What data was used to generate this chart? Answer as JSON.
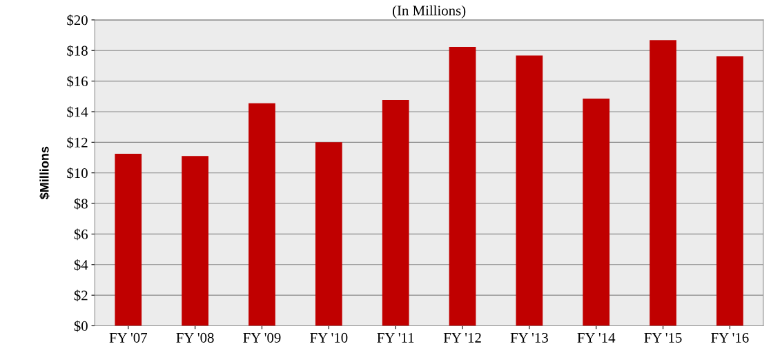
{
  "chart_data": {
    "type": "bar",
    "title": "(In Millions)",
    "ylabel": "$Millions",
    "categories": [
      "FY '07",
      "FY '08",
      "FY '09",
      "FY '10",
      "FY '11",
      "FY '12",
      "FY '13",
      "FY '14",
      "FY '15",
      "FY '16"
    ],
    "values": [
      11.25,
      11.1,
      14.55,
      12.0,
      14.77,
      18.24,
      17.67,
      14.86,
      18.68,
      17.63
    ],
    "color": "#c00000",
    "ylim": [
      0,
      20
    ],
    "yticks": [
      {
        "value": 0,
        "label": "$0"
      },
      {
        "value": 2,
        "label": "$2"
      },
      {
        "value": 4,
        "label": "$4"
      },
      {
        "value": 6,
        "label": "$6"
      },
      {
        "value": 8,
        "label": "$8"
      },
      {
        "value": 10,
        "label": "$10"
      },
      {
        "value": 12,
        "label": "$12"
      },
      {
        "value": 14,
        "label": "$14"
      },
      {
        "value": 16,
        "label": "$16"
      },
      {
        "value": 18,
        "label": "$18"
      },
      {
        "value": 20,
        "label": "$20"
      }
    ],
    "grid": "y",
    "legend": false
  }
}
